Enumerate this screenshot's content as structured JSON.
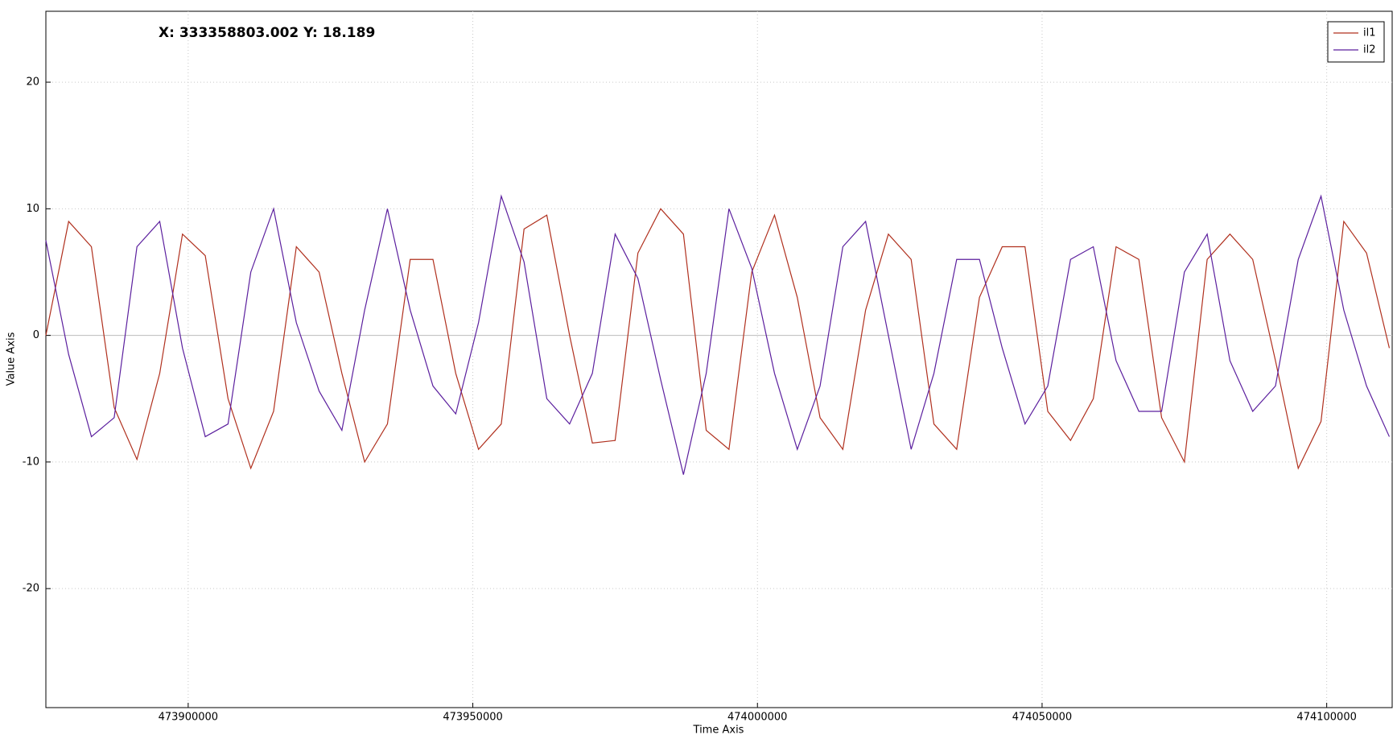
{
  "chart_data": {
    "type": "line",
    "annotation": "X: 333358803.002 Y: 18.189",
    "xlabel": "Time Axis",
    "ylabel": "Value Axis",
    "x": [
      473875000,
      473879000,
      473883000,
      473887000,
      473891000,
      473895000,
      473899000,
      473903000,
      473907000,
      473911000,
      473915000,
      473919000,
      473923000,
      473927000,
      473931000,
      473935000,
      473939000,
      473943000,
      473947000,
      473951000,
      473955000,
      473959000,
      473963000,
      473967000,
      473971000,
      473975000,
      473979000,
      473983000,
      473987000,
      473991000,
      473995000,
      473999000,
      474003000,
      474007000,
      474011000,
      474015000,
      474019000,
      474023000,
      474027000,
      474031000,
      474035000,
      474039000,
      474043000,
      474047000,
      474051000,
      474055000,
      474059000,
      474063000,
      474067000,
      474071000,
      474075000,
      474079000,
      474083000,
      474087000,
      474091000,
      474095000,
      474099000,
      474103000,
      474107000,
      474111000
    ],
    "series": [
      {
        "name": "il1",
        "color": "#b0301e",
        "values": [
          0,
          9,
          7,
          -5.7,
          -9.8,
          -3,
          8,
          6.3,
          -5,
          -10.5,
          -6,
          7,
          5,
          -3,
          -10,
          -7,
          6,
          6,
          -3,
          -9,
          -7,
          8.4,
          9.5,
          0,
          -8.5,
          -8.3,
          6.5,
          10,
          8,
          -7.5,
          -9,
          5,
          9.5,
          3,
          -6.5,
          -9,
          2,
          8,
          6,
          -7,
          -9,
          3,
          7,
          7,
          -6,
          -8.3,
          -5,
          7,
          6,
          -6.5,
          -10,
          6,
          8,
          6,
          -2,
          -10.5,
          -6.8,
          9,
          6.5,
          -1
        ]
      },
      {
        "name": "il2",
        "color": "#5b1f9e",
        "values": [
          7.5,
          -1.5,
          -8,
          -6.5,
          7,
          9,
          -1,
          -8,
          -7,
          5,
          10,
          1,
          -4.4,
          -7.5,
          2,
          10,
          2,
          -4,
          -6.2,
          1,
          11,
          5.8,
          -5,
          -7,
          -3,
          8,
          4.5,
          -3.5,
          -11,
          -3,
          10,
          5.3,
          -3,
          -9,
          -4,
          7,
          9,
          0,
          -9,
          -3,
          6,
          6,
          -1,
          -7,
          -4,
          6,
          7,
          -2,
          -6,
          -6,
          5,
          8,
          -2,
          -6,
          -4,
          6,
          11,
          2,
          -4,
          -8
        ]
      }
    ],
    "xlim": [
      473875000,
      474111500
    ],
    "ylim": [
      -29.4,
      25.6
    ],
    "xticks": [
      473900000,
      473950000,
      474000000,
      474050000,
      474100000
    ],
    "yticks": [
      -20,
      -10,
      0,
      10,
      20
    ],
    "grid": true,
    "legend": "upper right"
  }
}
